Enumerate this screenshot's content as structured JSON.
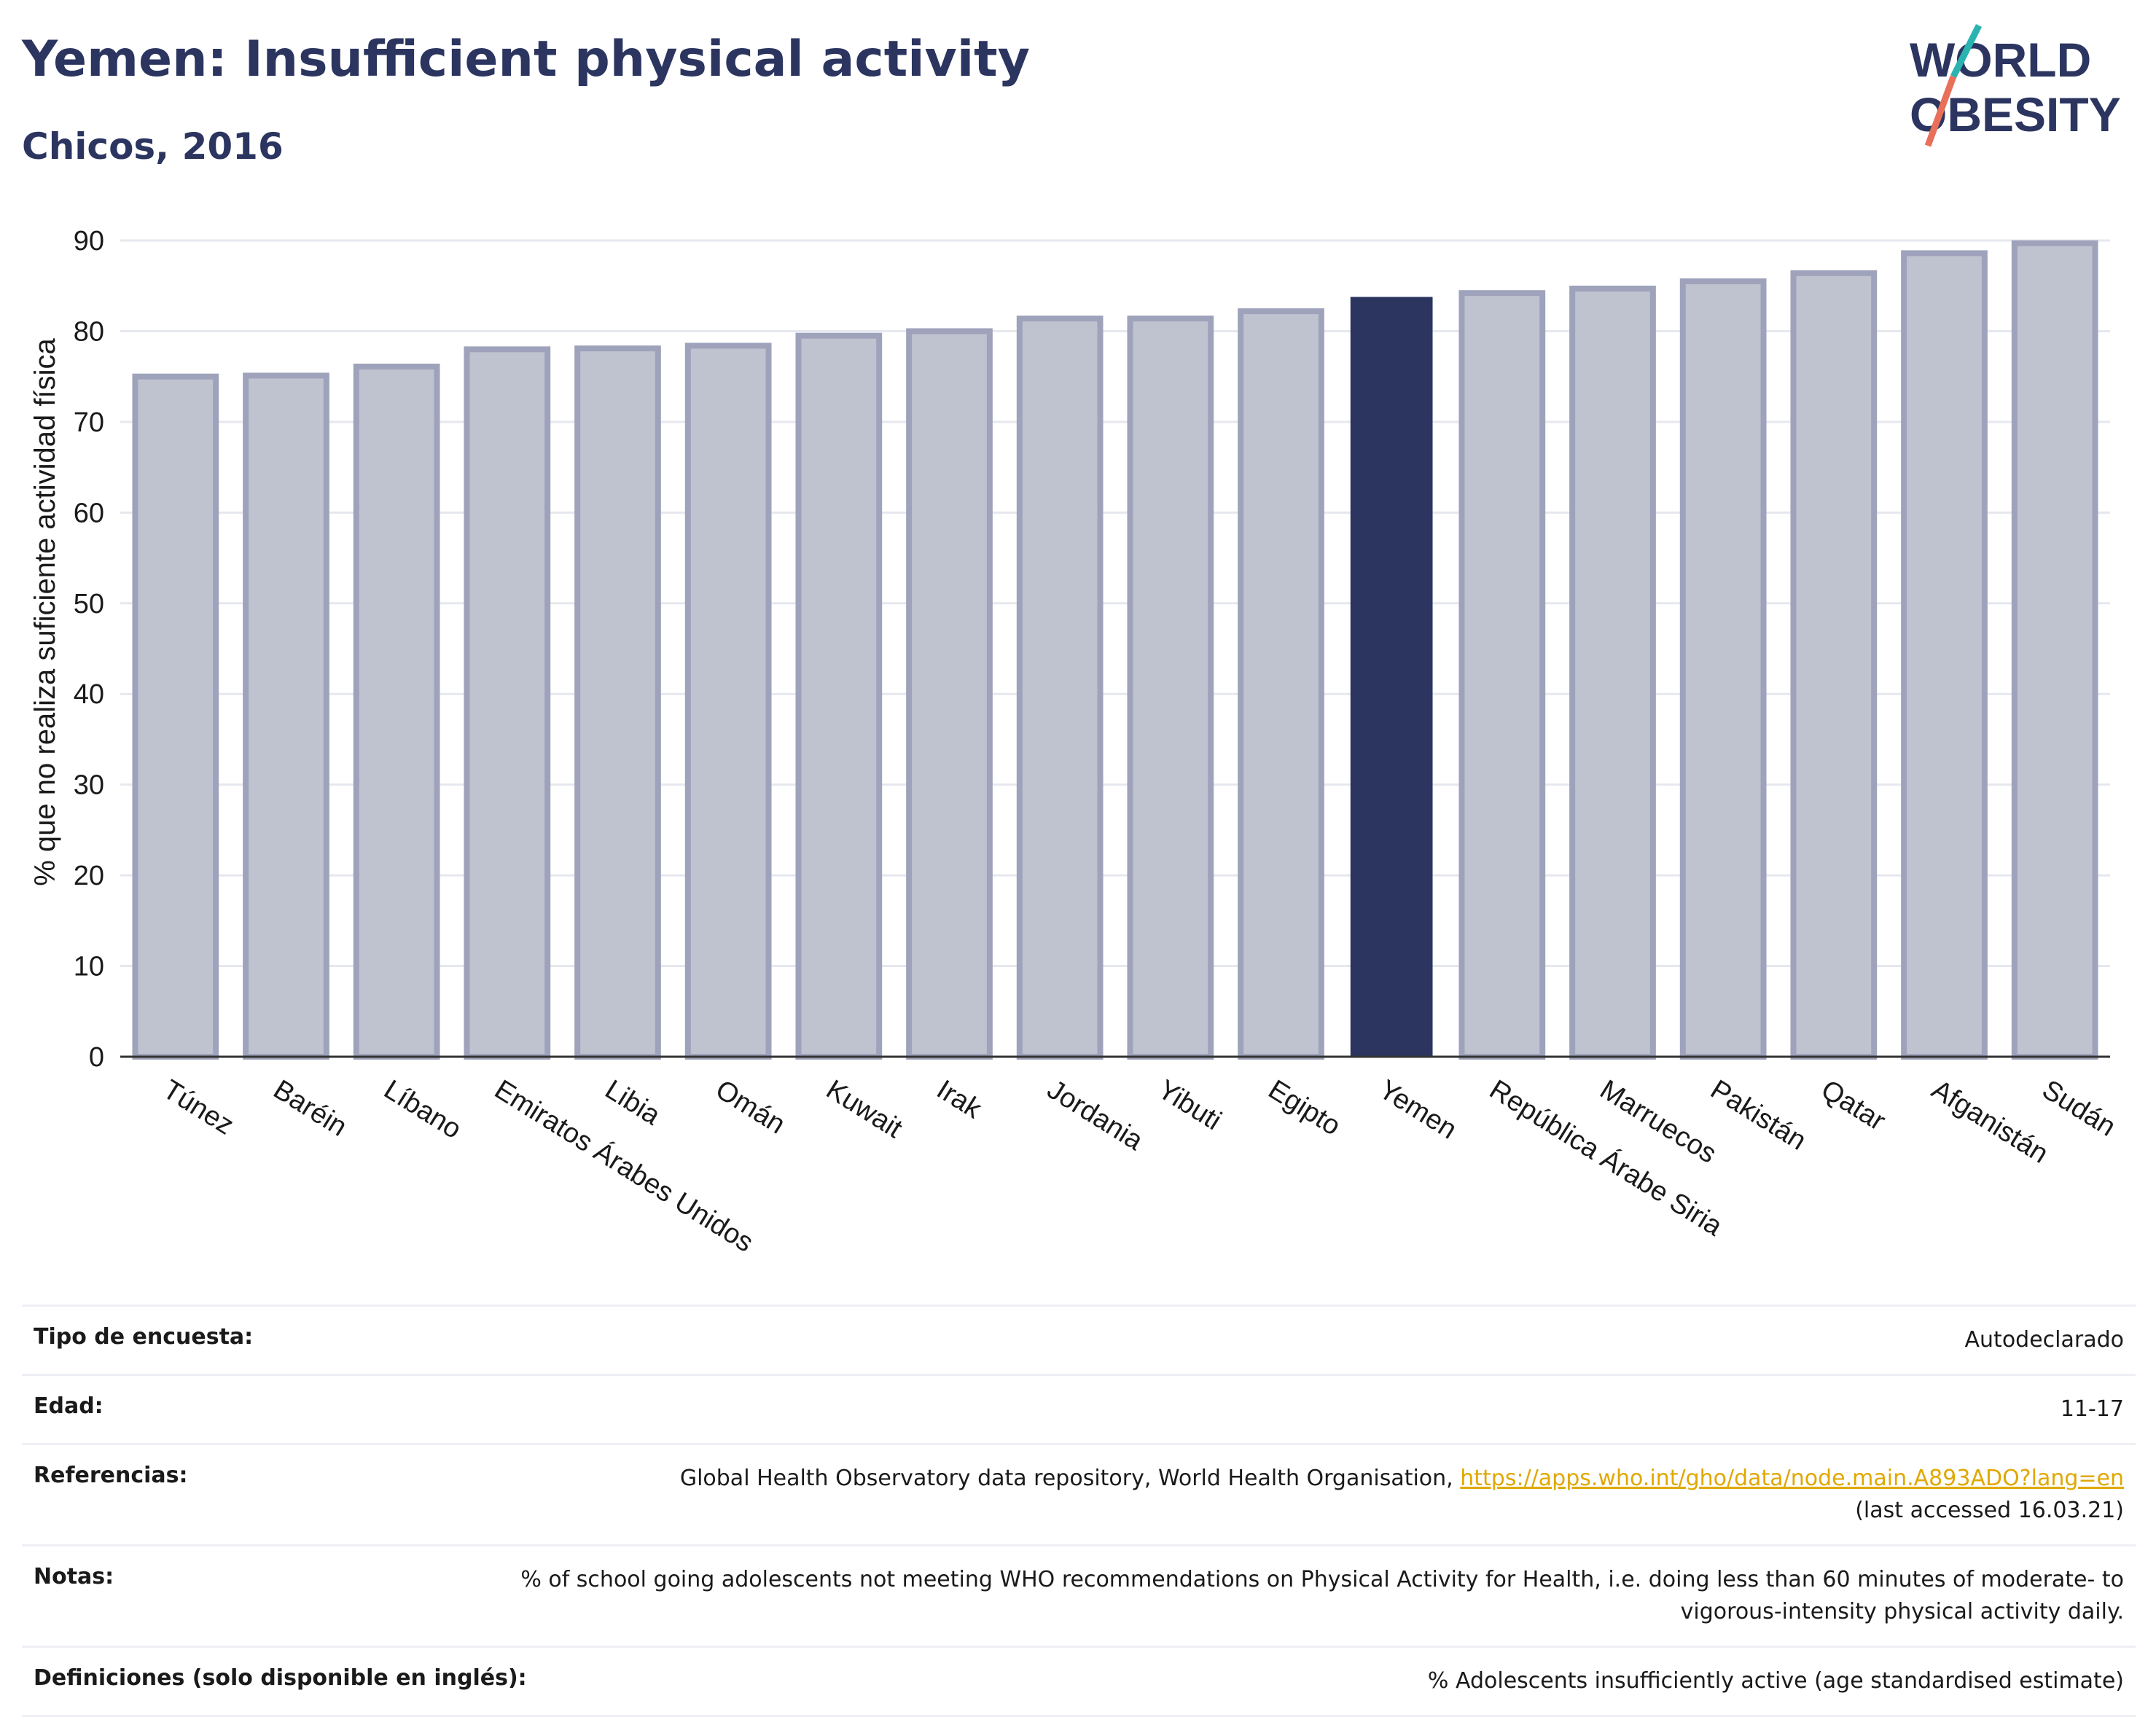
{
  "header": {
    "title": "Yemen: Insufficient physical activity",
    "subtitle": "Chicos, 2016"
  },
  "logo": {
    "line1": "WORLD",
    "line2": "OBESITY"
  },
  "chart_data": {
    "type": "bar",
    "categories": [
      "Túnez",
      "Baréin",
      "Líbano",
      "Emiratos Árabes Unidos",
      "Libia",
      "Omán",
      "Kuwait",
      "Irak",
      "Jordania",
      "Yibuti",
      "Egipto",
      "Yemen",
      "República Árabe Siria",
      "Marruecos",
      "Pakistán",
      "Qatar",
      "Afganistán",
      "Sudán"
    ],
    "values": [
      75.0,
      75.1,
      76.1,
      78.0,
      78.1,
      78.4,
      79.5,
      80.0,
      81.4,
      81.4,
      82.2,
      83.7,
      84.2,
      84.7,
      85.5,
      86.4,
      88.6,
      89.7
    ],
    "highlight": "Yemen",
    "title": "",
    "xlabel": "",
    "ylabel": "% que no realiza suficiente actividad física",
    "ylim": [
      0,
      90
    ],
    "yticks": [
      0,
      10,
      20,
      30,
      40,
      50,
      60,
      70,
      80,
      90
    ],
    "grid": true,
    "colors": {
      "bar": "#bfc2cf",
      "bar_border": "#9ea3bb",
      "highlight": "#2b3560"
    }
  },
  "info": {
    "rows": [
      {
        "label": "Tipo de encuesta:",
        "value": "Autodeclarado"
      },
      {
        "label": "Edad:",
        "value": "11-17"
      },
      {
        "label": "Referencias:",
        "value": "Global Health Observatory data repository, World Health Organisation,",
        "link": "https://apps.who.int/gho/data/node.main.A893ADO?lang=en",
        "value2": "(last accessed 16.03.21)"
      },
      {
        "label": "Notas:",
        "value": "% of school going adolescents not meeting WHO recommendations on Physical Activity for Health, i.e. doing less than 60 minutes of moderate- to vigorous-intensity physical activity daily."
      },
      {
        "label": "Definiciones (solo disponible en inglés):",
        "value": "% Adolescents insufficiently active (age standardised estimate)"
      }
    ]
  }
}
